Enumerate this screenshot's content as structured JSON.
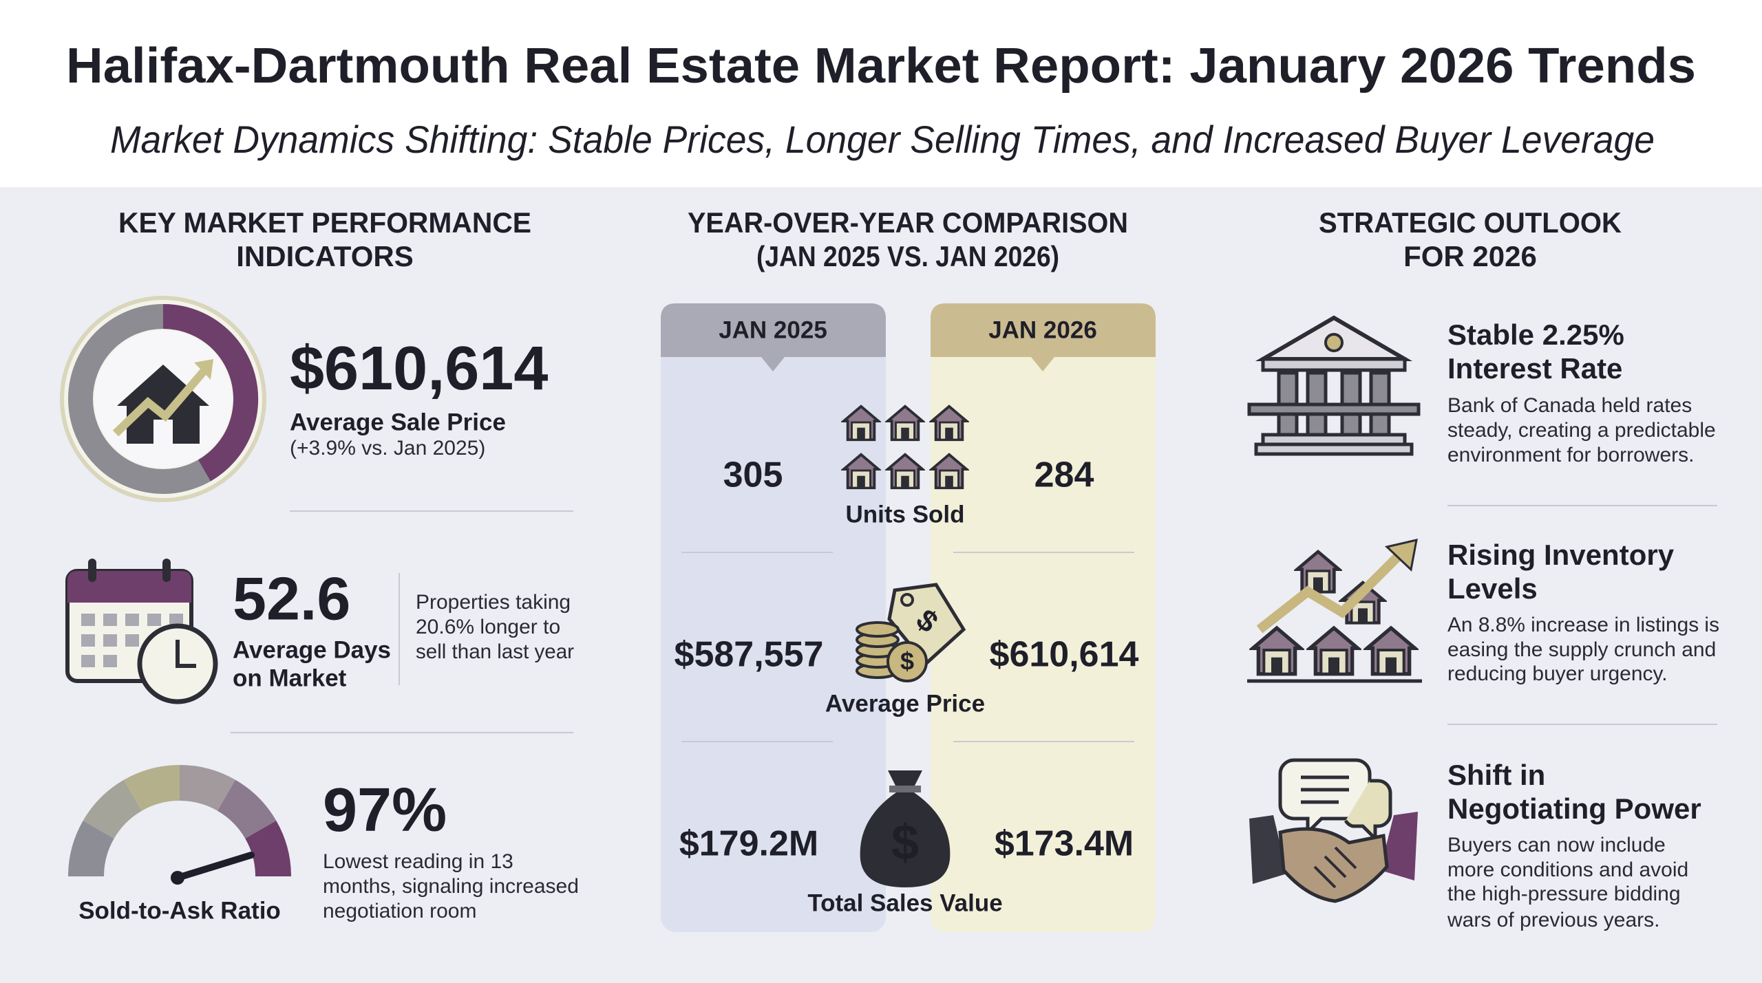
{
  "header": {
    "title": "Halifax-Dartmouth Real Estate Market Report: January 2026 Trends",
    "subtitle": "Market Dynamics Shifting: Stable Prices, Longer Selling Times, and Increased Buyer Leverage"
  },
  "kpi": {
    "heading": [
      "KEY MARKET PERFORMANCE",
      "INDICATORS"
    ],
    "price": {
      "value": "$610,614",
      "label": "Average Sale Price",
      "note": "(+3.9% vs. Jan 2025)"
    },
    "days": {
      "value": "52.6",
      "label": [
        "Average Days",
        "on Market"
      ],
      "note": [
        "Properties taking",
        "20.6% longer to",
        "sell than last year"
      ]
    },
    "ratio": {
      "value": "97%",
      "label": "Sold-to-Ask Ratio",
      "note": [
        "Lowest reading in 13",
        "months, signaling increased",
        "negotiation room"
      ]
    }
  },
  "comparison": {
    "heading": "YEAR-OVER-YEAR COMPARISON",
    "subheading": "(JAN 2025 VS. JAN 2026)",
    "columns": [
      "JAN 2025",
      "JAN 2026"
    ],
    "rows": [
      {
        "label": "Units Sold",
        "values": [
          "305",
          "284"
        ]
      },
      {
        "label": "Average Price",
        "values": [
          "$587,557",
          "$610,614"
        ]
      },
      {
        "label": "Total Sales Value",
        "values": [
          "$179.2M",
          "$173.4M"
        ]
      }
    ]
  },
  "outlook": {
    "heading": [
      "STRATEGIC OUTLOOK",
      "FOR 2026"
    ],
    "items": [
      {
        "title": [
          "Stable 2.25%",
          "Interest Rate"
        ],
        "text": [
          "Bank of Canada held rates",
          "steady, creating a predictable",
          "environment for borrowers."
        ]
      },
      {
        "title": [
          "Rising Inventory",
          "Levels"
        ],
        "text": [
          "An 8.8% increase in listings is",
          "easing the supply crunch and",
          "reducing buyer urgency."
        ]
      },
      {
        "title": [
          "Shift in",
          "Negotiating Power"
        ],
        "text": [
          "Buyers can now include",
          "more conditions and avoid",
          "the high-pressure bidding",
          "wars of previous years."
        ]
      }
    ]
  }
}
